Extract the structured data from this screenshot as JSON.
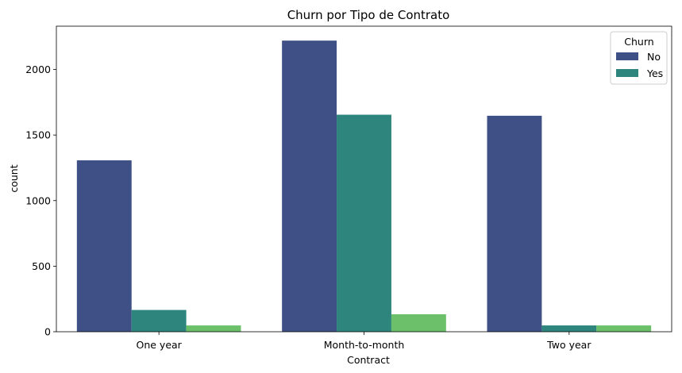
{
  "chart_data": {
    "type": "bar",
    "title": "Churn por Tipo de Contrato",
    "xlabel": "Contract",
    "ylabel": "count",
    "categories": [
      "One year",
      "Month-to-month",
      "Two year"
    ],
    "ylim": [
      0,
      2330
    ],
    "yticks": [
      0,
      500,
      1000,
      1500,
      2000
    ],
    "grid": false,
    "legend": {
      "title": "Churn",
      "placement": "top-right",
      "entries": [
        "No",
        "Yes"
      ]
    },
    "series": [
      {
        "name": "No",
        "color": "#3e5085",
        "values": [
          1307,
          2220,
          1647
        ]
      },
      {
        "name": "Yes",
        "color": "#2e857d",
        "values": [
          166,
          1655,
          48
        ]
      },
      {
        "color": "#6cc06a",
        "values": [
          48,
          133,
          48
        ]
      }
    ]
  }
}
